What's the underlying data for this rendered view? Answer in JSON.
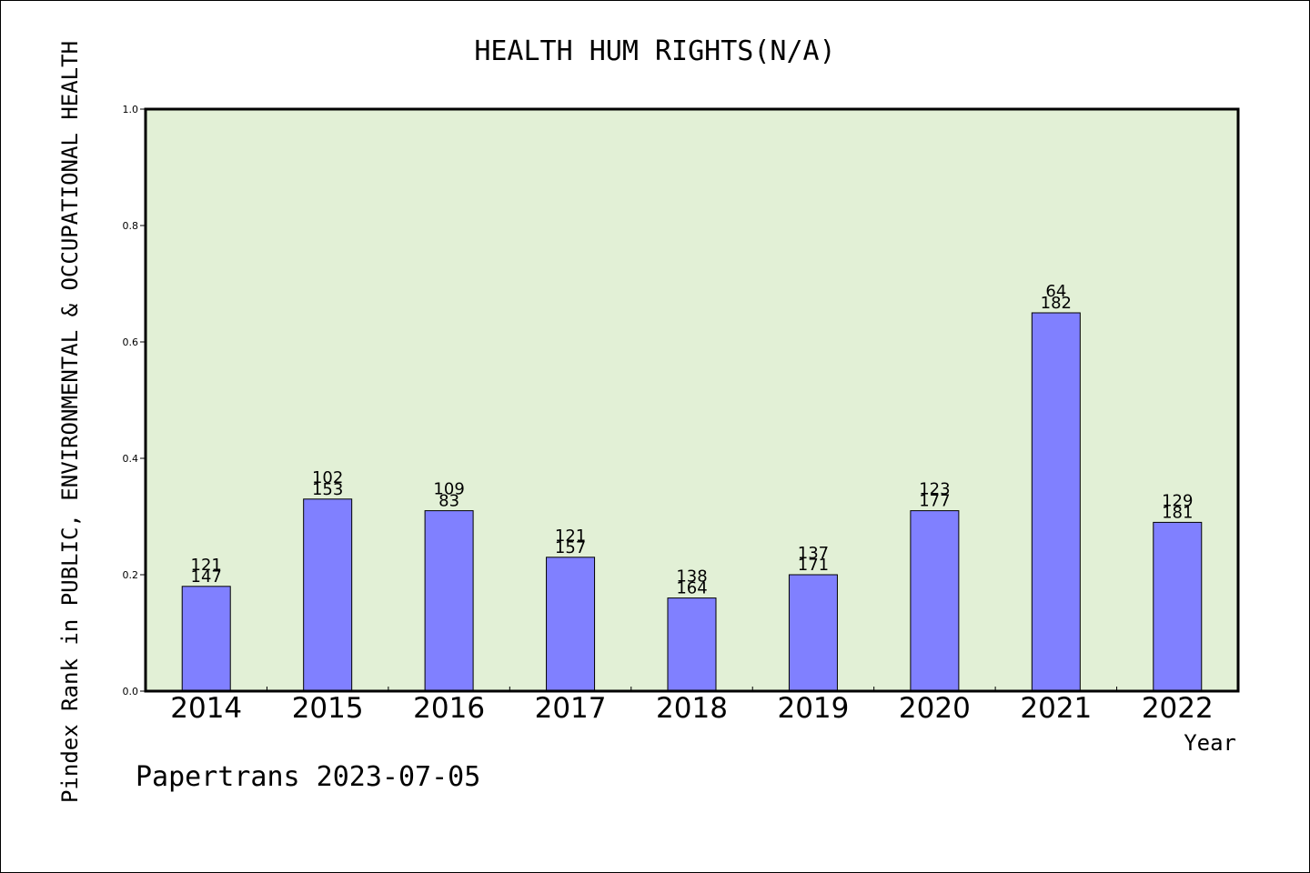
{
  "chart_data": {
    "type": "bar",
    "title": "HEALTH HUM RIGHTS(N/A)",
    "xlabel": "Year",
    "ylabel": "Pindex Rank in PUBLIC, ENVIRONMENTAL & OCCUPATIONAL HEALTH",
    "ylim": [
      0,
      1.0
    ],
    "yticks": [
      "0.0",
      "0.2",
      "0.4",
      "0.6",
      "0.8",
      "1.0"
    ],
    "categories": [
      "2014",
      "2015",
      "2016",
      "2017",
      "2018",
      "2019",
      "2020",
      "2021",
      "2022"
    ],
    "values": [
      0.18,
      0.33,
      0.31,
      0.23,
      0.16,
      0.2,
      0.31,
      0.65,
      0.29
    ],
    "labels_top": [
      "121",
      "102",
      "109",
      "121",
      "138",
      "137",
      "123",
      "64",
      "129"
    ],
    "labels_bottom": [
      "147",
      "153",
      "83",
      "157",
      "164",
      "171",
      "177",
      "182",
      "181"
    ],
    "bar_color": "#8080ff",
    "plot_background": "#e2f0d6",
    "grid": false
  },
  "footer": "Papertrans 2023-07-05"
}
